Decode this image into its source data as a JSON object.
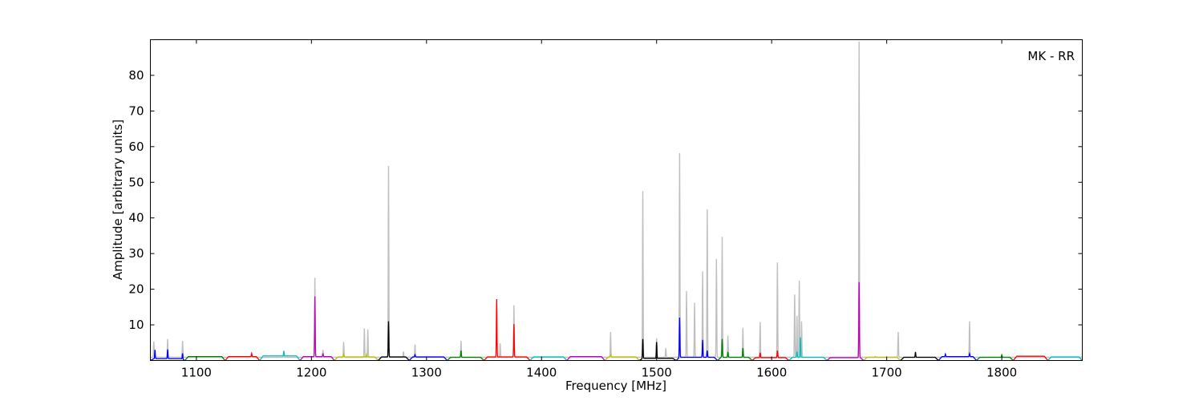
{
  "chart_data": {
    "type": "line",
    "title": "",
    "annotation": "MK - RR",
    "xlabel": "Frequency [MHz]",
    "ylabel": "Amplitude [arbitrary units]",
    "xlim": [
      1060,
      1870
    ],
    "ylim": [
      0,
      90
    ],
    "x_ticks": [
      1100,
      1200,
      1300,
      1400,
      1500,
      1600,
      1700,
      1800
    ],
    "y_ticks": [
      10,
      20,
      30,
      40,
      50,
      60,
      70,
      80
    ],
    "grid": false,
    "legend": "none",
    "raw_spectrum": {
      "color": "#bfbfbf",
      "baseline": 0.9,
      "peaks": [
        [
          1063,
          5.3
        ],
        [
          1075,
          6.0
        ],
        [
          1088,
          5.5
        ],
        [
          1148,
          2.4
        ],
        [
          1176,
          2.8
        ],
        [
          1203,
          23.2
        ],
        [
          1210,
          3.0
        ],
        [
          1228,
          5.2
        ],
        [
          1246,
          9.0
        ],
        [
          1249,
          8.7
        ],
        [
          1267,
          54.6
        ],
        [
          1280,
          2.5
        ],
        [
          1290,
          4.5
        ],
        [
          1330,
          5.5
        ],
        [
          1364,
          4.8
        ],
        [
          1376,
          15.5
        ],
        [
          1460,
          8.0
        ],
        [
          1488,
          47.5
        ],
        [
          1500,
          6.2
        ],
        [
          1508,
          3.5
        ],
        [
          1520,
          58.2
        ],
        [
          1526,
          19.5
        ],
        [
          1533,
          16.2
        ],
        [
          1540,
          25.0
        ],
        [
          1544,
          42.4
        ],
        [
          1552,
          28.5
        ],
        [
          1557,
          34.7
        ],
        [
          1562,
          7.0
        ],
        [
          1575,
          9.2
        ],
        [
          1590,
          10.8
        ],
        [
          1605,
          27.5
        ],
        [
          1620,
          18.5
        ],
        [
          1622,
          12.5
        ],
        [
          1624,
          22.4
        ],
        [
          1626,
          11.0
        ],
        [
          1676,
          89.5
        ],
        [
          1710,
          8.0
        ],
        [
          1772,
          11.0
        ]
      ]
    },
    "series": [
      {
        "color": "#0000ff",
        "x": [
          1060,
          1090
        ],
        "baseline": 0.5,
        "peaks": [
          [
            1064,
            3.0
          ],
          [
            1075,
            3.1
          ],
          [
            1088,
            3.0
          ]
        ]
      },
      {
        "color": "#008000",
        "x": [
          1090,
          1125
        ],
        "baseline": 1.1,
        "peaks": []
      },
      {
        "color": "#ff0000",
        "x": [
          1125,
          1155
        ],
        "baseline": 1.1,
        "peaks": [
          [
            1148,
            1.9
          ]
        ]
      },
      {
        "color": "#00bfbf",
        "x": [
          1155,
          1190
        ],
        "baseline": 1.3,
        "peaks": [
          [
            1176,
            2.6
          ]
        ]
      },
      {
        "color": "#bf00bf",
        "x": [
          1190,
          1220
        ],
        "baseline": 1.1,
        "peaks": [
          [
            1203,
            18.0
          ],
          [
            1210,
            2.0
          ]
        ]
      },
      {
        "color": "#bfbf00",
        "x": [
          1220,
          1258
        ],
        "baseline": 1.0,
        "peaks": [
          [
            1228,
            1.8
          ],
          [
            1248,
            1.8
          ]
        ]
      },
      {
        "color": "#000000",
        "x": [
          1258,
          1285
        ],
        "baseline": 1.0,
        "peaks": [
          [
            1267,
            11.0
          ]
        ]
      },
      {
        "color": "#0000ff",
        "x": [
          1285,
          1318
        ],
        "baseline": 1.0,
        "peaks": [
          [
            1290,
            1.6
          ]
        ]
      },
      {
        "color": "#008000",
        "x": [
          1318,
          1350
        ],
        "baseline": 0.9,
        "peaks": [
          [
            1330,
            2.8
          ]
        ]
      },
      {
        "color": "#ff0000",
        "x": [
          1350,
          1390
        ],
        "baseline": 1.0,
        "peaks": [
          [
            1361,
            17.2
          ],
          [
            1376,
            10.2
          ]
        ]
      },
      {
        "color": "#00bfbf",
        "x": [
          1390,
          1422
        ],
        "baseline": 1.0,
        "peaks": []
      },
      {
        "color": "#bf00bf",
        "x": [
          1422,
          1455
        ],
        "baseline": 1.1,
        "peaks": []
      },
      {
        "color": "#bfbf00",
        "x": [
          1455,
          1485
        ],
        "baseline": 1.0,
        "peaks": [
          [
            1460,
            1.5
          ]
        ]
      },
      {
        "color": "#000000",
        "x": [
          1485,
          1517
        ],
        "baseline": 0.6,
        "peaks": [
          [
            1488,
            6.0
          ],
          [
            1500,
            5.2
          ]
        ]
      },
      {
        "color": "#0000ff",
        "x": [
          1517,
          1553
        ],
        "baseline": 0.9,
        "peaks": [
          [
            1520,
            12.0
          ],
          [
            1540,
            5.8
          ],
          [
            1544,
            2.8
          ]
        ]
      },
      {
        "color": "#008000",
        "x": [
          1553,
          1583
        ],
        "baseline": 0.9,
        "peaks": [
          [
            1557,
            6.0
          ],
          [
            1562,
            2.4
          ],
          [
            1575,
            3.5
          ]
        ]
      },
      {
        "color": "#ff0000",
        "x": [
          1583,
          1615
        ],
        "baseline": 0.8,
        "peaks": [
          [
            1590,
            2.2
          ],
          [
            1605,
            2.8
          ]
        ]
      },
      {
        "color": "#00bfbf",
        "x": [
          1615,
          1648
        ],
        "baseline": 0.9,
        "peaks": [
          [
            1622,
            2.5
          ],
          [
            1625,
            6.5
          ]
        ]
      },
      {
        "color": "#bf00bf",
        "x": [
          1648,
          1680
        ],
        "baseline": 0.8,
        "peaks": [
          [
            1676,
            22.0
          ]
        ]
      },
      {
        "color": "#bfbf00",
        "x": [
          1680,
          1712
        ],
        "baseline": 0.9,
        "peaks": [
          [
            1690,
            1.1
          ]
        ]
      },
      {
        "color": "#000000",
        "x": [
          1712,
          1745
        ],
        "baseline": 0.9,
        "peaks": [
          [
            1725,
            2.4
          ]
        ]
      },
      {
        "color": "#0000ff",
        "x": [
          1745,
          1778
        ],
        "baseline": 1.1,
        "peaks": [
          [
            1751,
            1.8
          ],
          [
            1772,
            1.9
          ]
        ]
      },
      {
        "color": "#008000",
        "x": [
          1778,
          1810
        ],
        "baseline": 0.9,
        "peaks": [
          [
            1800,
            1.6
          ]
        ]
      },
      {
        "color": "#ff0000",
        "x": [
          1810,
          1840
        ],
        "baseline": 1.2,
        "peaks": []
      },
      {
        "color": "#00bfbf",
        "x": [
          1840,
          1870
        ],
        "baseline": 1.0,
        "peaks": []
      }
    ]
  }
}
